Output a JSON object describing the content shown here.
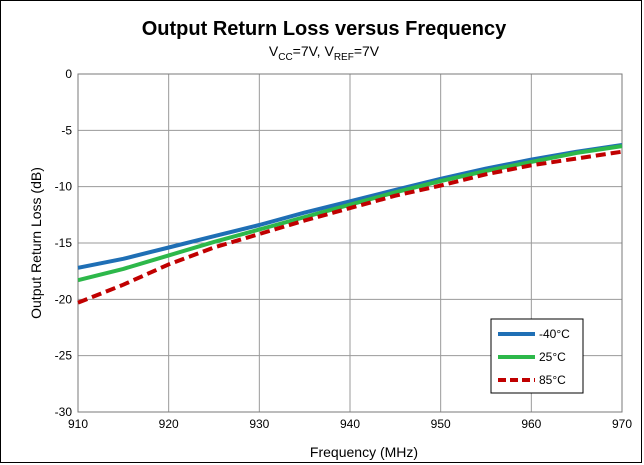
{
  "chart_data": {
    "type": "line",
    "title": "Output Return Loss versus Frequency",
    "subtitle": {
      "v1_main": "V",
      "v1_sub": "CC",
      "v1_rest": "=7V, V",
      "v2_sub": "REF",
      "v2_rest": "=7V"
    },
    "xlabel": "Frequency (MHz)",
    "ylabel": "Output Return Loss (dB)",
    "xlim": [
      910,
      970
    ],
    "ylim": [
      -30,
      0
    ],
    "xticks": [
      "910",
      "920",
      "930",
      "940",
      "950",
      "960",
      "970"
    ],
    "yticks": [
      "0",
      "-5",
      "-10",
      "-15",
      "-20",
      "-25",
      "-30"
    ],
    "grid": true,
    "legend_position": "bottom-right",
    "series": [
      {
        "name": "-40°C",
        "color": "#1f6fb5",
        "dash": "solid",
        "x": [
          910,
          915,
          920,
          925,
          930,
          935,
          940,
          945,
          950,
          955,
          960,
          965,
          970
        ],
        "y": [
          -17.2,
          -16.4,
          -15.4,
          -14.4,
          -13.4,
          -12.3,
          -11.3,
          -10.3,
          -9.3,
          -8.4,
          -7.6,
          -6.9,
          -6.3
        ]
      },
      {
        "name": "25°C",
        "color": "#2db84a",
        "dash": "solid",
        "x": [
          910,
          915,
          920,
          925,
          930,
          935,
          940,
          945,
          950,
          955,
          960,
          965,
          970
        ],
        "y": [
          -18.3,
          -17.3,
          -16.1,
          -14.9,
          -13.8,
          -12.7,
          -11.6,
          -10.5,
          -9.5,
          -8.6,
          -7.8,
          -7.0,
          -6.4
        ]
      },
      {
        "name": "85°C",
        "color": "#c00000",
        "dash": "dashed",
        "x": [
          910,
          915,
          920,
          925,
          930,
          935,
          940,
          945,
          950,
          955,
          960,
          965,
          970
        ],
        "y": [
          -20.3,
          -18.7,
          -16.9,
          -15.4,
          -14.2,
          -13.0,
          -11.9,
          -10.8,
          -9.9,
          -8.9,
          -8.1,
          -7.5,
          -6.9
        ]
      }
    ]
  }
}
